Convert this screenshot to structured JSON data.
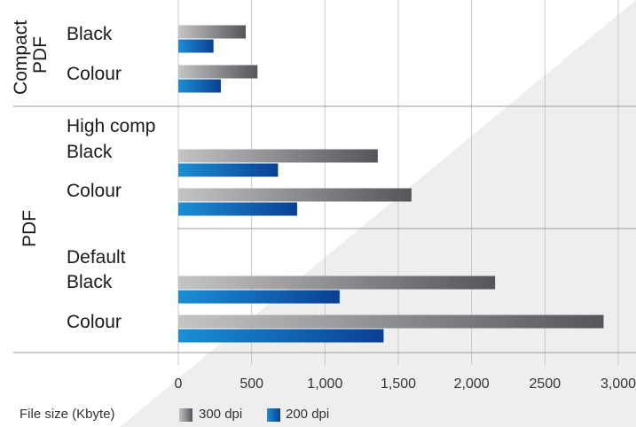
{
  "chart_data": {
    "type": "bar",
    "orientation": "horizontal",
    "xlabel": "File size (Kbyte)",
    "xlim": [
      0,
      3000
    ],
    "xticks": [
      "0",
      "500",
      "1,000",
      "1,500",
      "2,000",
      "2500",
      "3,000"
    ],
    "grid": true,
    "legend_position": "bottom",
    "groups": [
      "Compact PDF",
      "PDF"
    ],
    "subgroups": [
      "High comp",
      "Default"
    ],
    "categories": [
      "Black",
      "Colour",
      "Black",
      "Colour",
      "Black",
      "Colour"
    ],
    "series": [
      {
        "name": "300 dpi",
        "color": "#5a5a5c",
        "values": [
          460,
          540,
          1360,
          1590,
          2160,
          2900
        ]
      },
      {
        "name": "200 dpi",
        "color": "#0d55a8",
        "values": [
          240,
          290,
          680,
          810,
          1100,
          1400
        ]
      }
    ]
  }
}
